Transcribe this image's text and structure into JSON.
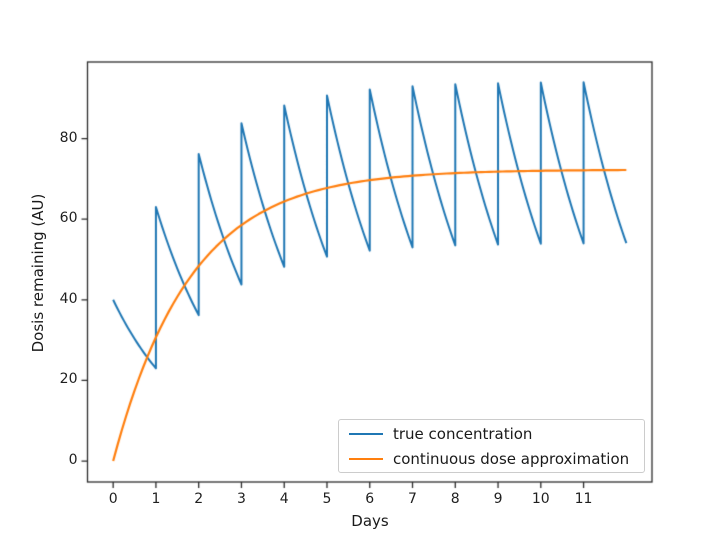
{
  "figure": {
    "background": "#ffffff"
  },
  "chart_data": {
    "type": "line",
    "title": "",
    "xlabel": "Days",
    "ylabel": "Dosis remaining (AU)",
    "xlim": [
      -0.6,
      12.6
    ],
    "ylim": [
      -5.2,
      99.0
    ],
    "xticks": [
      0,
      1,
      2,
      3,
      4,
      5,
      6,
      7,
      8,
      9,
      10,
      11
    ],
    "yticks": [
      0,
      20,
      40,
      60,
      80
    ],
    "grid": false,
    "legend_position": "lower right",
    "axis_color": "#2b2b2b",
    "series": [
      {
        "name": "true concentration",
        "color": "#1f77b4",
        "type": "sawtooth-exponential-decay",
        "description": "dose of 40 AU added at each day, exponential decay (factor 0.575/day) between doses",
        "dose_days": [
          0,
          1,
          2,
          3,
          4,
          5,
          6,
          7,
          8,
          9,
          10,
          11
        ],
        "peaks_after_dose": [
          40.0,
          63.0,
          76.2,
          83.8,
          88.2,
          90.7,
          92.2,
          93.0,
          93.5,
          93.7,
          93.9,
          94.0
        ],
        "valleys_end_of_day": [
          23.0,
          36.2,
          43.8,
          48.2,
          50.7,
          52.2,
          53.0,
          53.5,
          53.7,
          53.9,
          54.0,
          54.05
        ],
        "t_end": 12
      },
      {
        "name": "continuous dose approximation",
        "color": "#ff7f0e",
        "type": "exponential-rise",
        "formula": "asymptote * (1 - exp(-rate_per_day * t))",
        "asymptote": 72.3,
        "rate_per_day": 0.553,
        "t_start": 0,
        "t_end": 12,
        "sample_points": {
          "t": [
            0,
            1,
            2,
            3,
            4,
            6,
            8,
            10,
            12
          ],
          "value": [
            0,
            30.7,
            48.4,
            58.5,
            64.4,
            69.7,
            71.4,
            72.0,
            72.2
          ]
        }
      }
    ]
  }
}
